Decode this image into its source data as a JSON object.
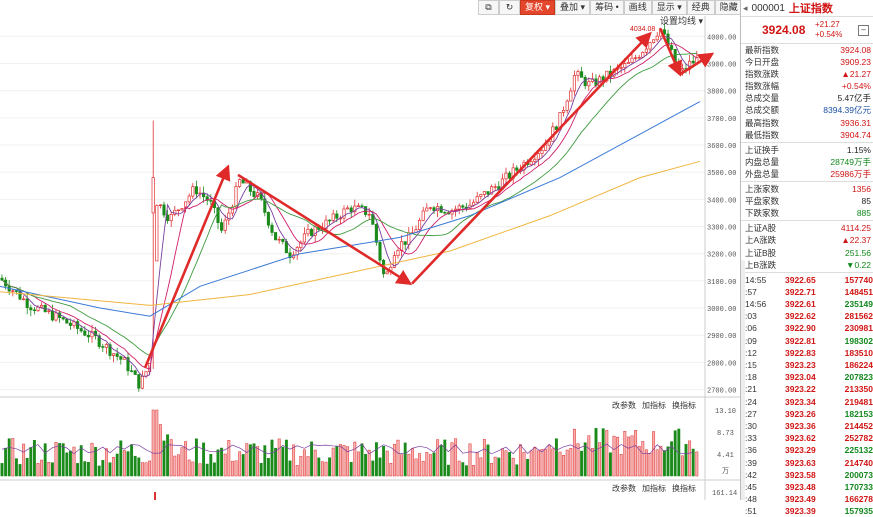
{
  "toolbar": {
    "items": [
      {
        "label": "复权 ▾",
        "active": true
      },
      {
        "label": "叠加 ▾",
        "active": false
      },
      {
        "label": "筹码 •",
        "active": false
      },
      {
        "label": "画线",
        "active": false
      },
      {
        "label": "显示 ▾",
        "active": false
      },
      {
        "label": "经典",
        "active": false
      },
      {
        "label": "隐藏 ▾",
        "active": false
      }
    ],
    "ma_setting": "设置均线 ▾"
  },
  "main_chart": {
    "y_ticks": [
      "4000.00",
      "3900.00",
      "3800.00",
      "3700.00",
      "3600.00",
      "3500.00",
      "3400.00",
      "3300.00",
      "3200.00",
      "3100.00",
      "3000.00",
      "2900.00",
      "2800.00",
      "2700.00"
    ],
    "high_label": "4034.08",
    "y_range": [
      2680,
      4060
    ]
  },
  "volume_panel": {
    "controls": [
      "改参数",
      "加指标",
      "换指标"
    ],
    "y_ticks": [
      "13.10",
      "8.73",
      "4.41",
      "万"
    ]
  },
  "indicator_panel": {
    "controls": [
      "改参数",
      "加指标",
      "换指标"
    ],
    "y_tick": "161.14"
  },
  "quote": {
    "code": "000001",
    "name": "上证指数",
    "price": "3924.08",
    "change": "+21.27",
    "change_pct": "+0.54%",
    "stats": [
      {
        "label": "最新指数",
        "value": "3924.08",
        "color": "red"
      },
      {
        "label": "今日开盘",
        "value": "3909.23",
        "color": "red"
      },
      {
        "label": "指数涨跌",
        "value": "▲21.27",
        "color": "red"
      },
      {
        "label": "指数涨幅",
        "value": "+0.54%",
        "color": "red"
      },
      {
        "label": "总成交量",
        "value": "5.47亿手",
        "color": "black"
      },
      {
        "label": "总成交额",
        "value": "8394.39亿元",
        "color": "blue"
      },
      {
        "label": "最高指数",
        "value": "3936.31",
        "color": "red"
      },
      {
        "label": "最低指数",
        "value": "3904.74",
        "color": "red"
      }
    ],
    "stats2": [
      {
        "label": "上证换手",
        "value": "1.15%",
        "color": "black"
      },
      {
        "label": "内盘总量",
        "value": "28749万手",
        "color": "green"
      },
      {
        "label": "外盘总量",
        "value": "25986万手",
        "color": "red"
      }
    ],
    "stats3": [
      {
        "label": "上涨家数",
        "value": "1356",
        "color": "red"
      },
      {
        "label": "平盘家数",
        "value": "85",
        "color": "black"
      },
      {
        "label": "下跌家数",
        "value": "885",
        "color": "green"
      }
    ],
    "stats4": [
      {
        "label": "上证A股",
        "value": "4114.25",
        "color": "red"
      },
      {
        "label": "上A涨跌",
        "value": "▲22.37",
        "color": "red"
      },
      {
        "label": "上证B股",
        "value": "251.56",
        "color": "green"
      },
      {
        "label": "上B涨跌",
        "value": "▼0.22",
        "color": "green"
      }
    ],
    "trades": [
      {
        "time": "14:55",
        "price": "3922.65",
        "vol": "157740",
        "c": "red"
      },
      {
        "time": ":57",
        "price": "3922.71",
        "vol": "148451",
        "c": "red"
      },
      {
        "time": "14:56",
        "price": "3922.61",
        "vol": "235149",
        "c": "green"
      },
      {
        "time": ":03",
        "price": "3922.62",
        "vol": "281562",
        "c": "red"
      },
      {
        "time": ":06",
        "price": "3922.90",
        "vol": "230981",
        "c": "red"
      },
      {
        "time": ":09",
        "price": "3922.81",
        "vol": "198302",
        "c": "green"
      },
      {
        "time": ":12",
        "price": "3922.83",
        "vol": "183510",
        "c": "red"
      },
      {
        "time": ":15",
        "price": "3923.23",
        "vol": "186224",
        "c": "red"
      },
      {
        "time": ":18",
        "price": "3923.04",
        "vol": "207823",
        "c": "green"
      },
      {
        "time": ":21",
        "price": "3923.22",
        "vol": "213350",
        "c": "red"
      },
      {
        "time": ":24",
        "price": "3923.34",
        "vol": "219481",
        "c": "red"
      },
      {
        "time": ":27",
        "price": "3923.26",
        "vol": "182153",
        "c": "green"
      },
      {
        "time": ":30",
        "price": "3923.36",
        "vol": "214452",
        "c": "red"
      },
      {
        "time": ":33",
        "price": "3923.62",
        "vol": "252782",
        "c": "red"
      },
      {
        "time": ":36",
        "price": "3923.29",
        "vol": "225132",
        "c": "green"
      },
      {
        "time": ":39",
        "price": "3923.63",
        "vol": "214740",
        "c": "red"
      },
      {
        "time": ":42",
        "price": "3923.58",
        "vol": "200073",
        "c": "green"
      },
      {
        "time": ":45",
        "price": "3923.48",
        "vol": "170733",
        "c": "green"
      },
      {
        "time": ":48",
        "price": "3923.49",
        "vol": "166278",
        "c": "red"
      },
      {
        "time": ":51",
        "price": "3923.39",
        "vol": "157935",
        "c": "green"
      }
    ]
  },
  "colors": {
    "up": "#e03030",
    "down": "#1b8a1b",
    "arrow": "#e02a2a",
    "ma5": "#7a3ea0",
    "ma10": "#d01f6a",
    "ma20": "#3d9a3d",
    "ma60": "#3a7ad8",
    "ma120": "#f0b540"
  }
}
